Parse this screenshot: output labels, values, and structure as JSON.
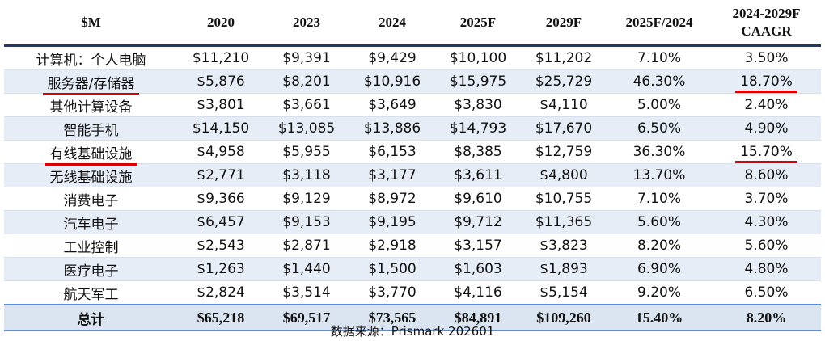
{
  "table": {
    "header": [
      "$M",
      "2020",
      "2023",
      "2024",
      "2025F",
      "2029F",
      "2025F/2024",
      "2024-2029F CAAGR"
    ],
    "rows": [
      [
        "计算机：个人电脑",
        "$11,210",
        "$9,391",
        "$9,429",
        "$10,100",
        "$11,202",
        "7.10%",
        "3.50%"
      ],
      [
        "服务器/存储器",
        "$5,876",
        "$8,201",
        "$10,916",
        "$15,975",
        "$25,729",
        "46.30%",
        "18.70%"
      ],
      [
        "其他计算设备",
        "$3,801",
        "$3,661",
        "$3,649",
        "$3,830",
        "$4,110",
        "5.00%",
        "2.40%"
      ],
      [
        "智能手机",
        "$14,150",
        "$13,085",
        "$13,886",
        "$14,793",
        "$17,670",
        "6.50%",
        "4.90%"
      ],
      [
        "有线基础设施",
        "$4,958",
        "$5,955",
        "$6,153",
        "$8,385",
        "$12,759",
        "36.30%",
        "15.70%"
      ],
      [
        "无线基础设施",
        "$2,771",
        "$3,118",
        "$3,177",
        "$3,611",
        "$4,800",
        "13.70%",
        "8.60%"
      ],
      [
        "消费电子",
        "$9,366",
        "$9,129",
        "$8,972",
        "$9,610",
        "$10,755",
        "7.10%",
        "3.70%"
      ],
      [
        "汽车电子",
        "$6,457",
        "$9,153",
        "$9,195",
        "$9,712",
        "$11,365",
        "5.60%",
        "4.30%"
      ],
      [
        "工业控制",
        "$2,543",
        "$2,871",
        "$2,918",
        "$3,157",
        "$3,823",
        "8.20%",
        "5.60%"
      ],
      [
        "医疗电子",
        "$1,263",
        "$1,440",
        "$1,500",
        "$1,603",
        "$1,893",
        "6.90%",
        "4.80%"
      ],
      [
        "航天军工",
        "$2,824",
        "$3,514",
        "$3,770",
        "$4,116",
        "$5,154",
        "9.20%",
        "6.50%"
      ]
    ],
    "total": [
      "总计",
      "$65,218",
      "$69,517",
      "$73,565",
      "$84,891",
      "$109,260",
      "15.40%",
      "8.20%"
    ],
    "source": "数据来源：Prismark 202601"
  }
}
